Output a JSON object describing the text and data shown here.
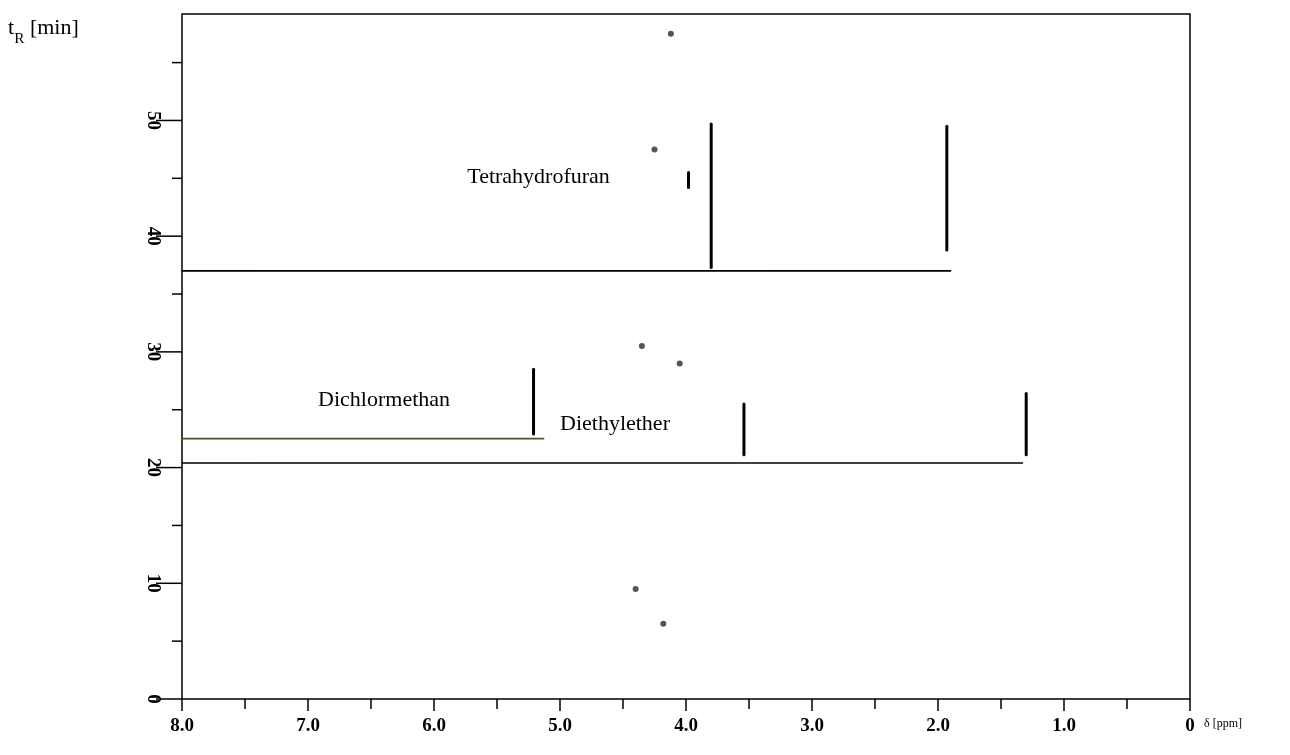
{
  "chart_data": {
    "type": "line",
    "xlabel": "δ [ppm]",
    "ylabel": "t$_{R}$ [min]",
    "xlim": [
      8,
      0
    ],
    "ylim": [
      0,
      59.2
    ],
    "xticks": [
      {
        "value": 8,
        "label": "8.0"
      },
      {
        "value": 7.5,
        "label": null
      },
      {
        "value": 7,
        "label": "7.0"
      },
      {
        "value": 6.5,
        "label": null
      },
      {
        "value": 6,
        "label": "6.0"
      },
      {
        "value": 5.5,
        "label": null
      },
      {
        "value": 5,
        "label": "5.0"
      },
      {
        "value": 4.5,
        "label": null
      },
      {
        "value": 4,
        "label": "4.0"
      },
      {
        "value": 3.5,
        "label": null
      },
      {
        "value": 3,
        "label": "3.0"
      },
      {
        "value": 2.5,
        "label": null
      },
      {
        "value": 2,
        "label": "2.0"
      },
      {
        "value": 1.5,
        "label": null
      },
      {
        "value": 1,
        "label": "1.0"
      },
      {
        "value": 0.5,
        "label": null
      },
      0
    ],
    "yticks": [
      0,
      {
        "value": 5,
        "label": null
      },
      10,
      {
        "value": 15,
        "label": null
      },
      20,
      {
        "value": 25,
        "label": null
      },
      30,
      {
        "value": 35,
        "label": null
      },
      40,
      {
        "value": 45,
        "label": null
      },
      50,
      {
        "value": 55,
        "label": null
      }
    ],
    "grid": false,
    "series": [
      {
        "color": "#000000",
        "x": [
          8,
          1.9
        ],
        "values": [
          37,
          37
        ]
      },
      {
        "color": "#000000",
        "x": [
          8,
          1.33
        ],
        "values": [
          20.4,
          20.4
        ]
      },
      {
        "color": "#5a5028",
        "x": [
          8,
          5.13
        ],
        "values": [
          22.5,
          22.5
        ]
      },
      {
        "color": "#000000",
        "x": [
          3.8,
          3.8
        ],
        "values": [
          37.3,
          49.7
        ]
      },
      {
        "color": "#000000",
        "x": [
          1.93,
          1.93
        ],
        "values": [
          38.8,
          49.5
        ]
      },
      {
        "color": "#000000",
        "x": [
          3.98,
          3.98
        ],
        "values": [
          44.2,
          45.5
        ]
      },
      {
        "color": "#000000",
        "x": [
          5.21,
          5.21
        ],
        "values": [
          22.9,
          28.5
        ]
      },
      {
        "color": "#000000",
        "x": [
          3.54,
          3.54
        ],
        "values": [
          21.1,
          25.5
        ]
      },
      {
        "color": "#000000",
        "x": [
          1.3,
          1.3
        ],
        "values": [
          21.1,
          26.4
        ]
      },
      {
        "type": "scatter",
        "color": "#555555",
        "marker": "circle",
        "x": [
          4.12,
          4.25,
          4.35,
          4.05,
          4.4,
          4.18
        ],
        "values": [
          57.5,
          47.5,
          30.5,
          29,
          9.5,
          6.5
        ]
      }
    ],
    "annotations": [
      "Tetrahydrofuran",
      "Dichlormethan",
      "Diethylether"
    ]
  }
}
